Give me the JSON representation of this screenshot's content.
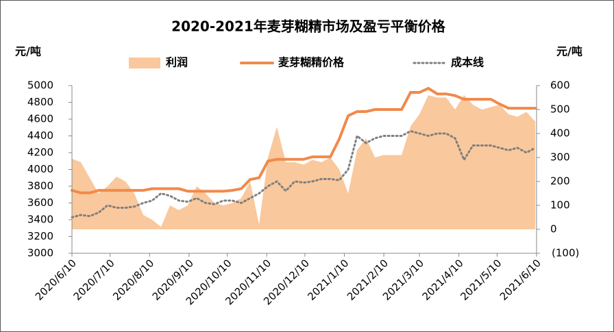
{
  "chart_data": {
    "type": "combo",
    "title": "2020-2021年麦芽糊精市场及盈亏平衡价格",
    "y_label": "元/吨",
    "y2_label": "元/吨",
    "x": [
      "2020/6/10",
      "2020/6/17",
      "2020/6/24",
      "2020/7/1",
      "2020/7/8",
      "2020/7/15",
      "2020/7/22",
      "2020/7/29",
      "2020/8/5",
      "2020/8/12",
      "2020/8/19",
      "2020/8/26",
      "2020/9/2",
      "2020/9/9",
      "2020/9/16",
      "2020/9/23",
      "2020/9/30",
      "2020/10/7",
      "2020/10/14",
      "2020/10/21",
      "2020/10/28",
      "2020/11/4",
      "2020/11/11",
      "2020/11/18",
      "2020/11/25",
      "2020/12/2",
      "2020/12/9",
      "2020/12/16",
      "2020/12/23",
      "2020/12/30",
      "2021/1/6",
      "2021/1/13",
      "2021/1/20",
      "2021/1/27",
      "2021/2/3",
      "2021/2/10",
      "2021/2/17",
      "2021/2/24",
      "2021/3/3",
      "2021/3/10",
      "2021/3/17",
      "2021/3/24",
      "2021/3/31",
      "2021/4/7",
      "2021/4/14",
      "2021/4/21",
      "2021/4/28",
      "2021/5/5",
      "2021/5/12",
      "2021/5/19",
      "2021/5/26",
      "2021/6/2",
      "2021/6/9"
    ],
    "xlim": [
      "2020/6/10",
      "2021/6/10"
    ],
    "xticks": [
      "2020/6/10",
      "2020/7/10",
      "2020/8/10",
      "2020/9/10",
      "2020/10/10",
      "2020/11/10",
      "2020/12/10",
      "2021/1/10",
      "2021/2/10",
      "2021/3/10",
      "2021/4/10",
      "2021/5/10",
      "2021/6/10"
    ],
    "ylim": [
      3000,
      5000
    ],
    "yticks": [
      3000,
      3200,
      3400,
      3600,
      3800,
      4000,
      4200,
      4400,
      4600,
      4800,
      5000
    ],
    "y2lim": [
      -100,
      600
    ],
    "y2ticks": [
      {
        "value": -100,
        "label": "(100)"
      },
      0,
      100,
      200,
      300,
      400,
      500,
      600
    ],
    "y2_negative_color": "#ff0000",
    "series": [
      {
        "name": "利润",
        "kind": "area",
        "axis": "y2",
        "color": "#f9c89c",
        "values": [
          295,
          280,
          214,
          150,
          180,
          220,
          200,
          150,
          60,
          40,
          10,
          100,
          80,
          100,
          180,
          150,
          110,
          100,
          110,
          130,
          200,
          20,
          300,
          428,
          280,
          280,
          270,
          290,
          280,
          300,
          250,
          150,
          330,
          380,
          300,
          310,
          310,
          310,
          430,
          480,
          560,
          550,
          550,
          500,
          560,
          520,
          500,
          510,
          520,
          480,
          470,
          490,
          450
        ]
      },
      {
        "name": "麦芽糊精价格",
        "kind": "line",
        "axis": "y",
        "color": "#f08a4b",
        "values": [
          3750,
          3720,
          3720,
          3750,
          3750,
          3750,
          3750,
          3750,
          3750,
          3770,
          3770,
          3770,
          3770,
          3740,
          3740,
          3740,
          3740,
          3740,
          3750,
          3770,
          3880,
          3900,
          4100,
          4120,
          4120,
          4120,
          4120,
          4150,
          4150,
          4150,
          4363,
          4640,
          4690,
          4690,
          4714,
          4714,
          4714,
          4714,
          4918,
          4918,
          4967,
          4900,
          4900,
          4880,
          4837,
          4837,
          4837,
          4837,
          4780,
          4730,
          4730,
          4730,
          4730
        ]
      },
      {
        "name": "成本线",
        "kind": "dotted",
        "axis": "y2",
        "color": "#7f7f7f",
        "values": [
          50,
          60,
          55,
          70,
          100,
          90,
          90,
          95,
          110,
          120,
          150,
          140,
          120,
          115,
          130,
          110,
          105,
          120,
          120,
          110,
          130,
          150,
          180,
          200,
          160,
          200,
          195,
          200,
          210,
          210,
          205,
          250,
          390,
          360,
          380,
          390,
          390,
          390,
          410,
          400,
          390,
          400,
          400,
          380,
          290,
          350,
          350,
          350,
          340,
          330,
          340,
          320,
          340
        ]
      }
    ]
  }
}
